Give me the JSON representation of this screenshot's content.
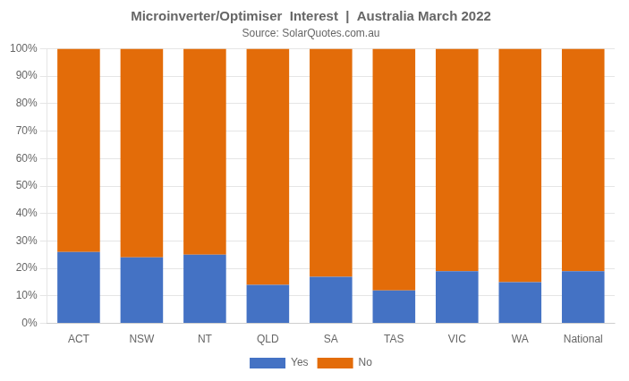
{
  "chart_data": {
    "type": "bar",
    "title": "Microinverter/Optimiser  Interest  |  Australia March 2022",
    "subtitle": "Source: SolarQuotes.com.au",
    "categories": [
      "ACT",
      "NSW",
      "NT",
      "QLD",
      "SA",
      "TAS",
      "VIC",
      "WA",
      "National"
    ],
    "series": [
      {
        "name": "Yes",
        "color": "#4472C4",
        "values": [
          26,
          24,
          25,
          14,
          17,
          12,
          19,
          15,
          19
        ]
      },
      {
        "name": "No",
        "color": "#E36C09",
        "values": [
          74,
          76,
          75,
          86,
          83,
          88,
          81,
          85,
          81
        ]
      }
    ],
    "stacked": true,
    "ylim": [
      0,
      100
    ],
    "yticks": [
      {
        "value": 0,
        "label": "0%"
      },
      {
        "value": 10,
        "label": "10%"
      },
      {
        "value": 20,
        "label": "20%"
      },
      {
        "value": 30,
        "label": "30%"
      },
      {
        "value": 40,
        "label": "40%"
      },
      {
        "value": 50,
        "label": "50%"
      },
      {
        "value": 60,
        "label": "60%"
      },
      {
        "value": 70,
        "label": "70%"
      },
      {
        "value": 80,
        "label": "80%"
      },
      {
        "value": 90,
        "label": "90%"
      },
      {
        "value": 100,
        "label": "100%"
      }
    ],
    "grid": true,
    "legend": "bottom"
  }
}
